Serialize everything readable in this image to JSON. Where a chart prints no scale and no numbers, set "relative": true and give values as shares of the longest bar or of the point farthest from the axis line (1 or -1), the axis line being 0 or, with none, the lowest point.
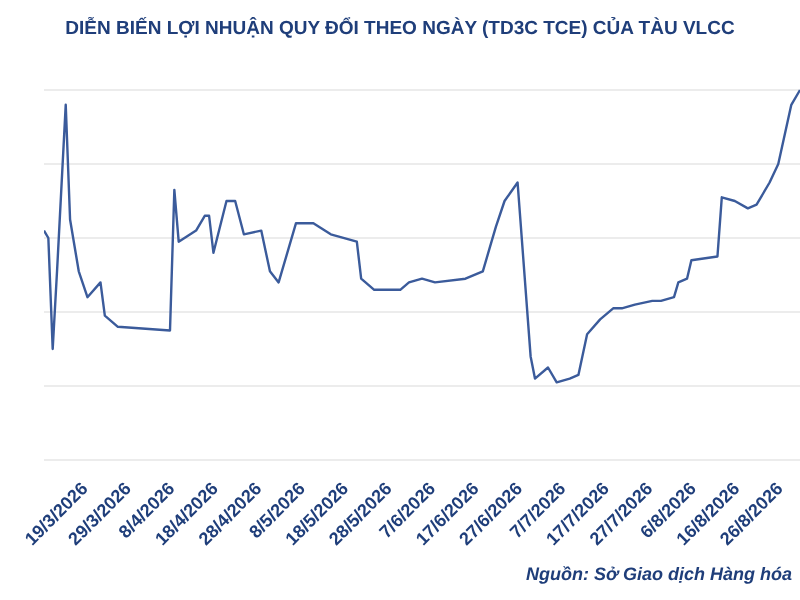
{
  "chart_data": {
    "type": "line",
    "title": "DIỄN BIẾN LỢI NHUẬN QUY ĐỔI THEO NGÀY (TD3C TCE) CỦA TÀU VLCC",
    "relative": true,
    "grid": "y",
    "legend": false,
    "marker": "none",
    "line_style": "solid",
    "xlim": [
      "2026-03-10",
      "2026-08-31"
    ],
    "xticks": [
      {
        "value": "2026-03-19",
        "label": "19/3/2026"
      },
      {
        "value": "2026-03-29",
        "label": "29/3/2026"
      },
      {
        "value": "2026-04-08",
        "label": "8/4/2026"
      },
      {
        "value": "2026-04-18",
        "label": "18/4/2026"
      },
      {
        "value": "2026-04-28",
        "label": "28/4/2026"
      },
      {
        "value": "2026-05-08",
        "label": "8/5/2026"
      },
      {
        "value": "2026-05-18",
        "label": "18/5/2026"
      },
      {
        "value": "2026-05-28",
        "label": "28/5/2026"
      },
      {
        "value": "2026-06-07",
        "label": "7/6/2026"
      },
      {
        "value": "2026-06-17",
        "label": "17/6/2026"
      },
      {
        "value": "2026-06-27",
        "label": "27/6/2026"
      },
      {
        "value": "2026-07-07",
        "label": "7/7/2026"
      },
      {
        "value": "2026-07-17",
        "label": "17/7/2026"
      },
      {
        "value": "2026-07-27",
        "label": "27/7/2026"
      },
      {
        "value": "2026-08-06",
        "label": "6/8/2026"
      },
      {
        "value": "2026-08-16",
        "label": "16/8/2026"
      },
      {
        "value": "2026-08-26",
        "label": "26/8/2026"
      }
    ],
    "x": [
      "2026-03-10",
      "2026-03-11",
      "2026-03-12",
      "2026-03-13",
      "2026-03-15",
      "2026-03-16",
      "2026-03-18",
      "2026-03-20",
      "2026-03-23",
      "2026-03-24",
      "2026-03-27",
      "2026-04-08",
      "2026-04-09",
      "2026-04-10",
      "2026-04-14",
      "2026-04-16",
      "2026-04-17",
      "2026-04-18",
      "2026-04-21",
      "2026-04-23",
      "2026-04-25",
      "2026-04-29",
      "2026-05-01",
      "2026-05-03",
      "2026-05-07",
      "2026-05-11",
      "2026-05-15",
      "2026-05-21",
      "2026-05-22",
      "2026-05-25",
      "2026-05-31",
      "2026-06-02",
      "2026-06-05",
      "2026-06-08",
      "2026-06-15",
      "2026-06-19",
      "2026-06-21",
      "2026-06-22",
      "2026-06-24",
      "2026-06-27",
      "2026-06-30",
      "2026-07-01",
      "2026-07-04",
      "2026-07-06",
      "2026-07-09",
      "2026-07-11",
      "2026-07-13",
      "2026-07-16",
      "2026-07-19",
      "2026-07-21",
      "2026-07-24",
      "2026-07-28",
      "2026-07-30",
      "2026-08-02",
      "2026-08-03",
      "2026-08-05",
      "2026-08-06",
      "2026-08-12",
      "2026-08-13",
      "2026-08-16",
      "2026-08-19",
      "2026-08-21",
      "2026-08-24",
      "2026-08-26",
      "2026-08-29",
      "2026-08-31"
    ],
    "series": [
      {
        "color": "#3b5b9b",
        "values": [
          0.62,
          0.6,
          0.3,
          0.51,
          0.96,
          0.65,
          0.51,
          0.44,
          0.48,
          0.39,
          0.36,
          0.35,
          0.73,
          0.59,
          0.62,
          0.66,
          0.66,
          0.56,
          0.7,
          0.7,
          0.61,
          0.62,
          0.51,
          0.48,
          0.64,
          0.64,
          0.61,
          0.59,
          0.49,
          0.46,
          0.46,
          0.48,
          0.49,
          0.48,
          0.49,
          0.51,
          0.59,
          0.63,
          0.7,
          0.75,
          0.28,
          0.22,
          0.25,
          0.21,
          0.22,
          0.23,
          0.34,
          0.38,
          0.41,
          0.41,
          0.42,
          0.43,
          0.43,
          0.44,
          0.48,
          0.49,
          0.54,
          0.55,
          0.71,
          0.7,
          0.68,
          0.69,
          0.75,
          0.8,
          0.96,
          1
        ]
      }
    ],
    "annotations": [
      "Nguồn: Sở Giao dịch Hàng hóa"
    ]
  }
}
